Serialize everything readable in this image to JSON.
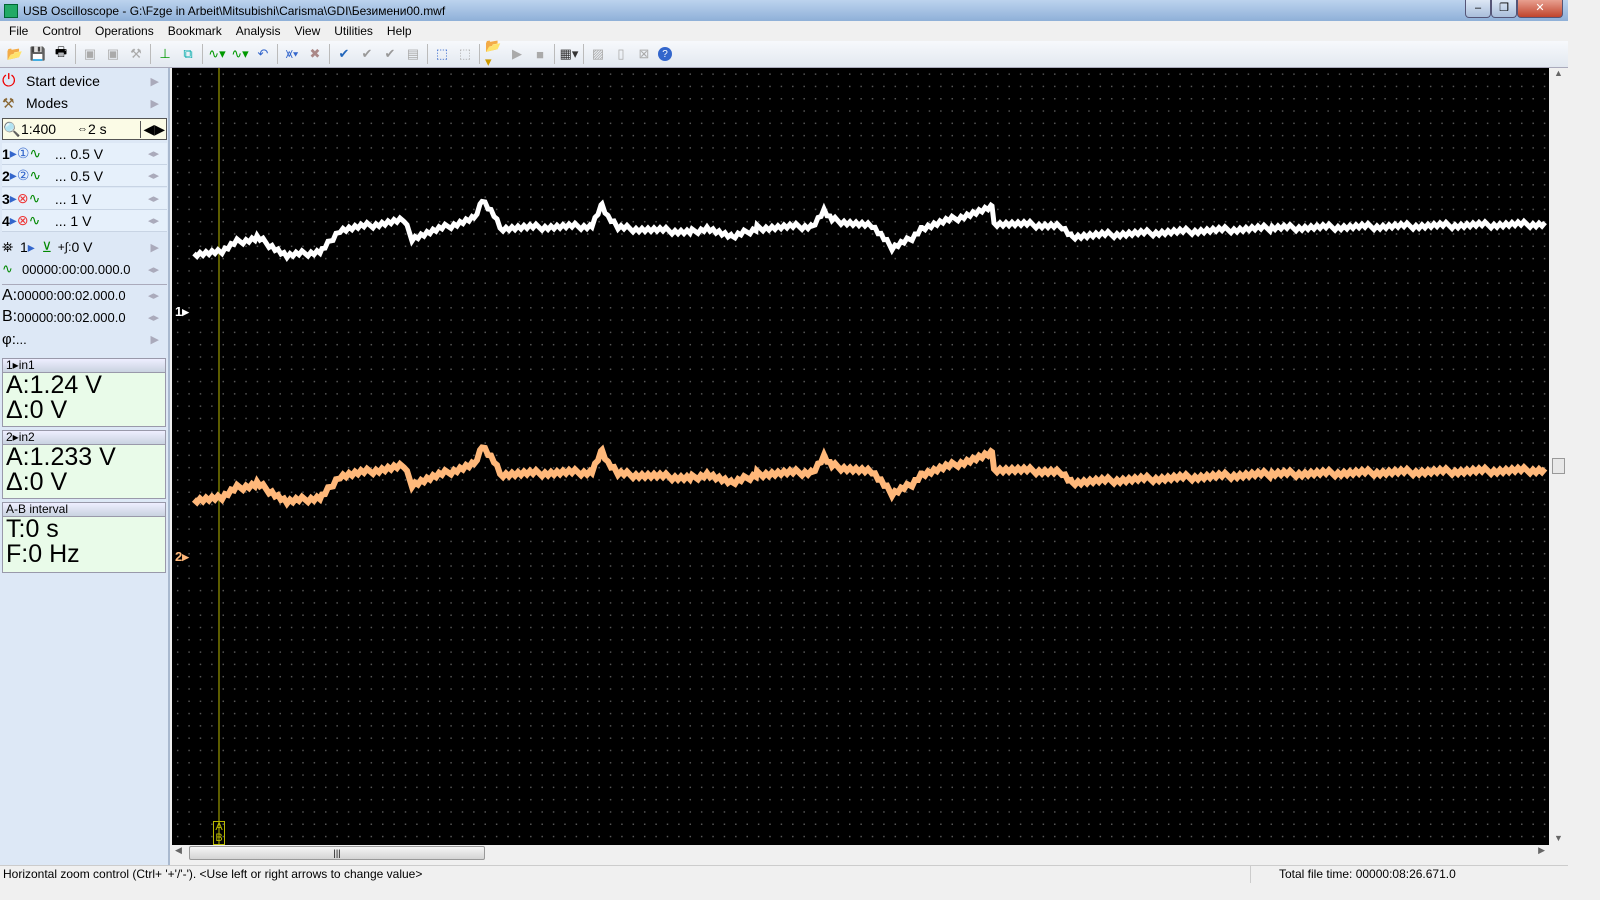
{
  "window": {
    "title": "USB Oscilloscope - G:\\Fzge in Arbeit\\Mitsubishi\\Carisma\\GDI\\Безимени00.mwf"
  },
  "menu": [
    "File",
    "Control",
    "Operations",
    "Bookmark",
    "Analysis",
    "View",
    "Utilities",
    "Help"
  ],
  "sidebar": {
    "start_device": "Start device",
    "modes": "Modes",
    "zoom": "1:400",
    "time_div": "2 s",
    "channels": [
      {
        "num": "1",
        "label": "... 0.5 V",
        "enabled": true
      },
      {
        "num": "2",
        "label": "... 0.5 V",
        "enabled": true
      },
      {
        "num": "3",
        "label": "... 1 V",
        "enabled": false
      },
      {
        "num": "4",
        "label": "... 1 V",
        "enabled": false
      }
    ],
    "trigger": {
      "channel": "1",
      "level": "0 V"
    },
    "trigger_time": "00000:00:00.000.0",
    "cursor_a": "00000:00:02.000.0",
    "cursor_b": "00000:00:02.000.0",
    "phi": "...",
    "a_label": "A:",
    "b_label": "B:",
    "phi_label": "φ:"
  },
  "panels": {
    "in1": {
      "header": "1▸in1",
      "a": "A:1.24 V",
      "delta": "Δ:0 V"
    },
    "in2": {
      "header": "2▸in2",
      "a": "A:1.233 V",
      "delta": "Δ:0 V"
    },
    "ab": {
      "header": "A-B interval",
      "t": "T:0 s",
      "f": "F:0 Hz"
    }
  },
  "plot": {
    "ch1_marker": "1▸",
    "ch2_marker": "2▸",
    "cursor_label_a": "A",
    "cursor_label_b": "B",
    "colors": {
      "ch1": "#ffffff",
      "ch2": "#ffb87a",
      "cursor": "#b8b800",
      "background": "#000000"
    }
  },
  "statusbar": {
    "hint": "Horizontal zoom control (Ctrl+ '+'/'-'). <Use left or right arrows to change value>",
    "total": "Total file time: 00000:08:26.671.0"
  }
}
